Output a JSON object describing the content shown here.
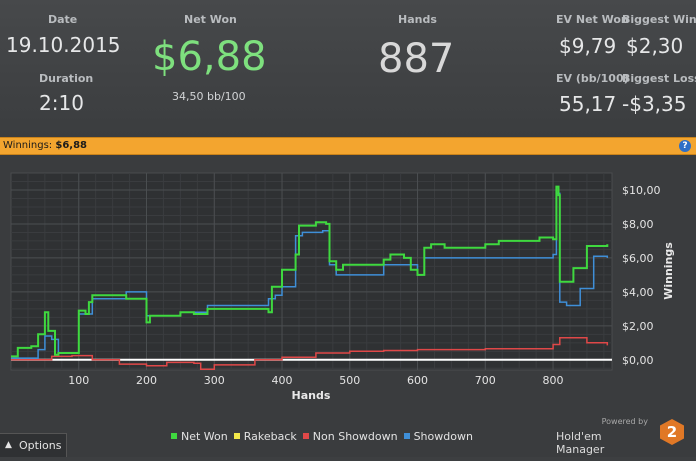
{
  "stats": {
    "date": {
      "label": "Date",
      "value": "19.10.2015"
    },
    "duration": {
      "label": "Duration",
      "value": "2:10"
    },
    "net_won": {
      "label": "Net Won",
      "value": "$6,88",
      "sub": "34,50 bb/100"
    },
    "hands": {
      "label": "Hands",
      "value": "887"
    },
    "ev_net_won": {
      "label": "EV Net Won",
      "value": "$9,79"
    },
    "biggest_win": {
      "label": "Biggest Win",
      "value": "$2,30"
    },
    "ev_bb100": {
      "label": "EV (bb/100)",
      "value": "55,17"
    },
    "biggest_loss": {
      "label": "Biggest Loss",
      "value": "-$3,35"
    }
  },
  "winnings_bar": {
    "label": "Winnings:",
    "value": "$6,88",
    "help_icon": "question-icon"
  },
  "chart_data": {
    "type": "line",
    "xlabel": "Hands",
    "ylabel": "Winnings",
    "xlim": [
      0,
      887
    ],
    "ylim": [
      -0.6,
      11
    ],
    "x_ticks": [
      100,
      200,
      300,
      400,
      500,
      600,
      700,
      800
    ],
    "x_tick_labels": [
      "100",
      "200",
      "300",
      "400",
      "500",
      "600",
      "700",
      "800"
    ],
    "y_ticks": [
      0,
      2,
      4,
      6,
      8,
      10
    ],
    "y_tick_labels": [
      "$0,00",
      "$2,00",
      "$4,00",
      "$6,00",
      "$8,00",
      "$10,00"
    ],
    "grid": true,
    "legend_position": "bottom",
    "series": [
      {
        "name": "Net Won",
        "color": "#3fd93f",
        "x": [
          0,
          10,
          30,
          40,
          50,
          55,
          65,
          70,
          100,
          110,
          115,
          120,
          170,
          200,
          205,
          250,
          270,
          290,
          380,
          385,
          400,
          420,
          425,
          450,
          465,
          470,
          480,
          490,
          550,
          560,
          580,
          590,
          600,
          610,
          620,
          640,
          700,
          720,
          780,
          800,
          805,
          808,
          810,
          830,
          850,
          880
        ],
        "y": [
          0.2,
          0.7,
          0.8,
          1.5,
          2.8,
          1.7,
          0.3,
          0.4,
          2.9,
          2.7,
          3.4,
          3.8,
          3.6,
          2.2,
          2.6,
          2.8,
          2.7,
          3.0,
          2.8,
          4.3,
          5.3,
          6.2,
          7.9,
          8.1,
          8.0,
          5.8,
          5.3,
          5.6,
          5.9,
          6.2,
          6.0,
          5.3,
          5.0,
          6.6,
          6.8,
          6.6,
          6.8,
          7.0,
          7.2,
          7.1,
          10.2,
          9.7,
          4.6,
          5.4,
          6.7,
          6.8
        ]
      },
      {
        "name": "Rakeback",
        "color": "#f2e84a",
        "x": [
          0,
          887
        ],
        "y": [
          0,
          0
        ]
      },
      {
        "name": "Non Showdown",
        "color": "#e04848",
        "x": [
          0,
          60,
          90,
          120,
          160,
          200,
          230,
          270,
          280,
          300,
          360,
          400,
          450,
          500,
          550,
          600,
          700,
          800,
          810,
          850,
          880
        ],
        "y": [
          0.0,
          0.2,
          0.25,
          0.0,
          -0.25,
          -0.35,
          -0.15,
          -0.2,
          -0.55,
          -0.3,
          0.0,
          0.15,
          0.4,
          0.5,
          0.55,
          0.6,
          0.65,
          0.9,
          1.3,
          1.0,
          0.85
        ]
      },
      {
        "name": "Showdown",
        "color": "#3f8fd8",
        "x": [
          0,
          40,
          50,
          60,
          70,
          100,
          120,
          170,
          200,
          250,
          290,
          380,
          390,
          400,
          420,
          430,
          460,
          470,
          480,
          550,
          600,
          610,
          700,
          800,
          805,
          810,
          820,
          840,
          860,
          880
        ],
        "y": [
          0.1,
          0.6,
          1.4,
          1.2,
          0.4,
          2.7,
          3.6,
          4.0,
          2.6,
          2.8,
          3.2,
          3.6,
          3.8,
          4.3,
          7.3,
          7.5,
          7.6,
          5.6,
          5.0,
          5.6,
          5.0,
          6.0,
          6.0,
          6.2,
          9.8,
          3.4,
          3.2,
          4.2,
          6.1,
          6.0
        ]
      }
    ]
  },
  "footer": {
    "options_label": "Options",
    "options_icon": "caret-up-icon",
    "brand_powered": "Powered by",
    "brand_name": "Hold'em Manager",
    "brand_logo_text": "2"
  }
}
